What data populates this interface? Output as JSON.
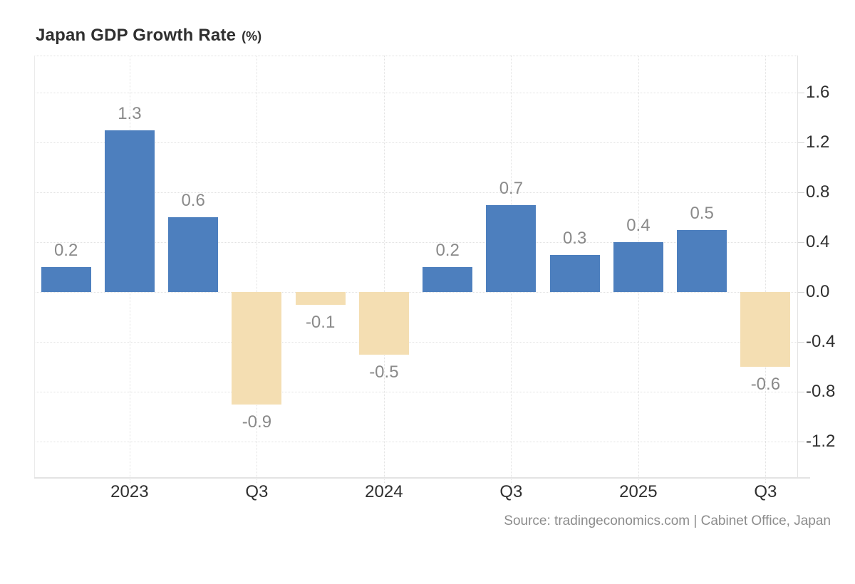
{
  "title": {
    "main": "Japan GDP Growth Rate",
    "unit": "(%)"
  },
  "source": "Source: tradingeconomics.com | Cabinet Office, Japan",
  "colors": {
    "positive_bar": "#4d7fbe",
    "negative_bar": "#f4deb2",
    "grid": "#e2e2e2",
    "axis_line": "#e3e3e3",
    "tick_label": "#2f2f2f",
    "value_label": "#8a8a8a",
    "title_text": "#2f2f2f",
    "source_text": "#8c8c8c"
  },
  "chart_data": {
    "type": "bar",
    "title": "Japan GDP Growth Rate (%)",
    "unit": "%",
    "values": [
      0.2,
      1.3,
      0.6,
      -0.9,
      -0.1,
      -0.5,
      0.2,
      0.7,
      0.3,
      0.4,
      0.5,
      -0.6
    ],
    "bar_value_labels": [
      "0.2",
      "1.3",
      "0.6",
      "-0.9",
      "-0.1",
      "-0.5",
      "0.2",
      "0.7",
      "0.3",
      "0.4",
      "0.5",
      "-0.6"
    ],
    "x_axis": {
      "tick_labels": [
        {
          "bar_index": 1,
          "label": "2023"
        },
        {
          "bar_index": 3,
          "label": "Q3"
        },
        {
          "bar_index": 5,
          "label": "2024"
        },
        {
          "bar_index": 7,
          "label": "Q3"
        },
        {
          "bar_index": 9,
          "label": "2025"
        },
        {
          "bar_index": 11,
          "label": "Q3"
        }
      ]
    },
    "y_axis": {
      "side": "right",
      "tick_labels": [
        "1.6",
        "1.2",
        "0.8",
        "0.4",
        "0.0",
        "-0.4",
        "-0.8",
        "-1.2"
      ],
      "ylim": [
        -1.2,
        1.6
      ]
    },
    "grid": "dotted",
    "legend": null
  }
}
